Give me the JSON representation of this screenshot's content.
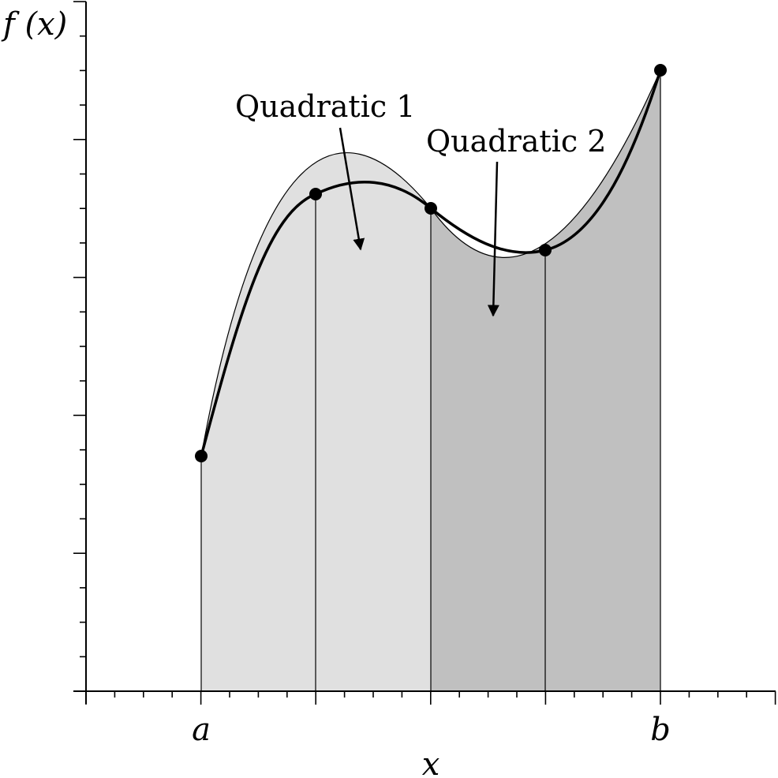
{
  "diagram": {
    "y_axis_label": "f (x)",
    "x_axis_label": "x",
    "x_tick_labels": [
      "a",
      "b"
    ],
    "annotations": [
      "Quadratic 1",
      "Quadratic 2"
    ],
    "fill_colors": {
      "panel_1": "#e0e0e0",
      "panel_2": "#c0c0c0"
    },
    "curve_color": "#000000"
  }
}
